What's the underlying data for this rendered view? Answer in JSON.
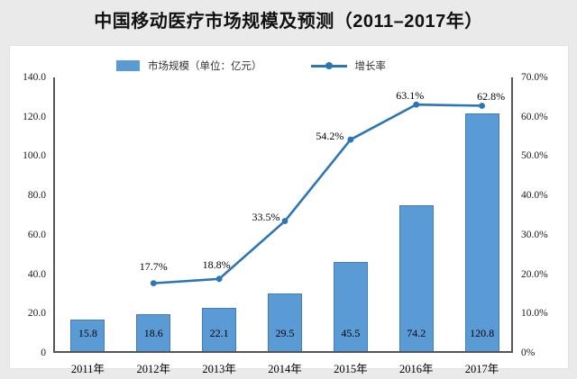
{
  "page": {
    "title": "中国移动医疗市场规模及预测（2011–2017年）"
  },
  "colors": {
    "bar": "#5B9BD5",
    "line": "#2E75B6",
    "axis": "#555555",
    "page_background": "#eaeaea",
    "panel_background": "#ffffff",
    "text": "#000000"
  },
  "legend": {
    "items": [
      {
        "label": "市场规模（单位：亿元）",
        "type": "bar"
      },
      {
        "label": "增长率",
        "type": "line"
      }
    ]
  },
  "chart_data": {
    "type": "bar",
    "subtype": "bar+line combo, dual axis",
    "title": "中国移动医疗市场规模及预测（2011–2017年）",
    "categories": [
      "2011年",
      "2012年",
      "2013年",
      "2014年",
      "2015年",
      "2016年",
      "2017年"
    ],
    "series": [
      {
        "name": "市场规模（单位：亿元）",
        "type": "bar",
        "axis": "left",
        "color": "#5B9BD5",
        "values": [
          15.8,
          18.6,
          22.1,
          29.5,
          45.5,
          74.2,
          120.8
        ],
        "labels": [
          "15.8",
          "18.6",
          "22.1",
          "29.5",
          "45.5",
          "74.2",
          "120.8"
        ]
      },
      {
        "name": "增长率",
        "type": "line",
        "axis": "right",
        "color": "#2E75B6",
        "values": [
          null,
          17.7,
          18.8,
          33.5,
          54.2,
          63.1,
          62.8
        ],
        "labels": [
          null,
          "17.7%",
          "18.8%",
          "33.5%",
          "54.2%",
          "63.1%",
          "62.8%"
        ]
      }
    ],
    "left_axis": {
      "min": 0,
      "max": 140,
      "step": 20,
      "tick_labels": [
        "0",
        "20.0",
        "40.0",
        "60.0",
        "80.0",
        "100.0",
        "120.0",
        "140.0"
      ]
    },
    "right_axis": {
      "min": 0,
      "max": 70,
      "step": 10,
      "tick_labels": [
        "0%",
        "10.0%",
        "20.0%",
        "30.0%",
        "40.0%",
        "50.0%",
        "60.0%",
        "70.0%"
      ]
    },
    "grid": false,
    "legend_position": "top"
  }
}
